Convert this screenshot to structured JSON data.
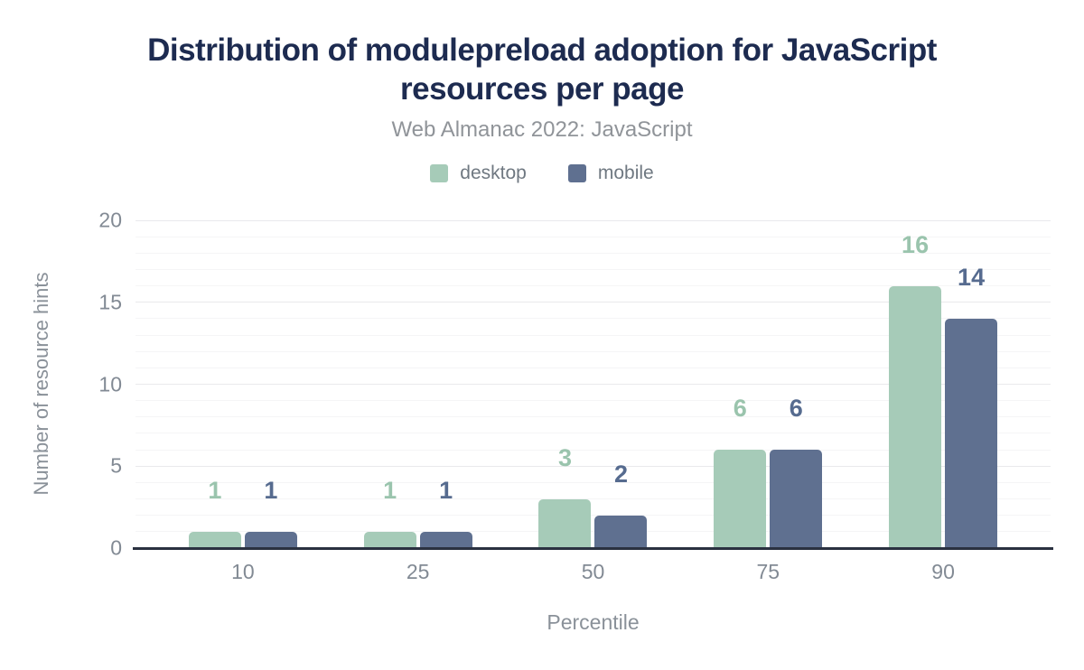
{
  "chart_data": {
    "type": "bar",
    "title": "Distribution of modulepreload adoption for JavaScript resources per page",
    "subtitle": "Web Almanac 2022: JavaScript",
    "categories": [
      "10",
      "25",
      "50",
      "75",
      "90"
    ],
    "series": [
      {
        "name": "desktop",
        "values": [
          1,
          1,
          3,
          6,
          16
        ],
        "color": "#a6cbb8",
        "label_color": "#9ac4ad"
      },
      {
        "name": "mobile",
        "values": [
          1,
          1,
          2,
          6,
          14
        ],
        "color": "#5f7090",
        "label_color": "#566b8f"
      }
    ],
    "xlabel": "Percentile",
    "ylabel": "Number of resource hints",
    "ylim": [
      0,
      20
    ],
    "yticks": [
      0,
      5,
      10,
      15,
      20
    ],
    "legend_position": "top",
    "grid": {
      "minor_step": 1,
      "major_step": 5,
      "minor_color": "#f5f5f6",
      "major_color": "#e9e9ec"
    },
    "colors": {
      "title": "#1d2b50",
      "subtitle": "#909499",
      "legend_text": "#6f7881",
      "tick_text": "#828a94",
      "axis_title_text": "#8a9199",
      "axis_line": "#2a3140",
      "background": "#ffffff"
    }
  }
}
